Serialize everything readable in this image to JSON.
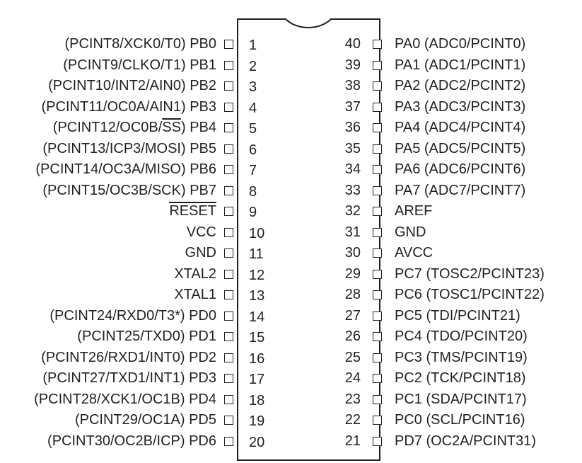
{
  "left_pins": [
    {
      "number": "1",
      "name": "PB0",
      "alt": "(PCINT8/XCK0/T0)"
    },
    {
      "number": "2",
      "name": "PB1",
      "alt": "(PCINT9/CLKO/T1)"
    },
    {
      "number": "3",
      "name": "PB2",
      "alt": "(PCINT10/INT2/AIN0)"
    },
    {
      "number": "4",
      "name": "PB3",
      "alt": "(PCINT11/OC0A/AIN1)"
    },
    {
      "number": "5",
      "name": "PB4",
      "alt_prefix": "(PCINT12/OC0B/",
      "alt_overline": "SS",
      "alt_suffix": ")"
    },
    {
      "number": "6",
      "name": "PB5",
      "alt": "(PCINT13/ICP3/MOSI)"
    },
    {
      "number": "7",
      "name": "PB6",
      "alt": "(PCINT14/OC3A/MISO)"
    },
    {
      "number": "8",
      "name": "PB7",
      "alt": "(PCINT15/OC3B/SCK)"
    },
    {
      "number": "9",
      "name_overline": "RESET",
      "alt": ""
    },
    {
      "number": "10",
      "name": "VCC",
      "alt": ""
    },
    {
      "number": "11",
      "name": "GND",
      "alt": ""
    },
    {
      "number": "12",
      "name": "XTAL2",
      "alt": ""
    },
    {
      "number": "13",
      "name": "XTAL1",
      "alt": ""
    },
    {
      "number": "14",
      "name": "PD0",
      "alt": "(PCINT24/RXD0/T3*)"
    },
    {
      "number": "15",
      "name": "PD1",
      "alt": "(PCINT25/TXD0)"
    },
    {
      "number": "16",
      "name": "PD2",
      "alt": "(PCINT26/RXD1/INT0)"
    },
    {
      "number": "17",
      "name": "PD3",
      "alt": "(PCINT27/TXD1/INT1)"
    },
    {
      "number": "18",
      "name": "PD4",
      "alt": "(PCINT28/XCK1/OC1B)"
    },
    {
      "number": "19",
      "name": "PD5",
      "alt": "(PCINT29/OC1A)"
    },
    {
      "number": "20",
      "name": "PD6",
      "alt": "(PCINT30/OC2B/ICP)"
    }
  ],
  "right_pins": [
    {
      "number": "40",
      "name": "PA0",
      "alt": "(ADC0/PCINT0)"
    },
    {
      "number": "39",
      "name": "PA1",
      "alt": "(ADC1/PCINT1)"
    },
    {
      "number": "38",
      "name": "PA2",
      "alt": "(ADC2/PCINT2)"
    },
    {
      "number": "37",
      "name": "PA3",
      "alt": "(ADC3/PCINT3)"
    },
    {
      "number": "36",
      "name": "PA4",
      "alt": "(ADC4/PCINT4)"
    },
    {
      "number": "35",
      "name": "PA5",
      "alt": "(ADC5/PCINT5)"
    },
    {
      "number": "34",
      "name": "PA6",
      "alt": "(ADC6/PCINT6)"
    },
    {
      "number": "33",
      "name": "PA7",
      "alt": "(ADC7/PCINT7)"
    },
    {
      "number": "32",
      "name": "AREF",
      "alt": ""
    },
    {
      "number": "31",
      "name": "GND",
      "alt": ""
    },
    {
      "number": "30",
      "name": "AVCC",
      "alt": ""
    },
    {
      "number": "29",
      "name": "PC7",
      "alt": "(TOSC2/PCINT23)"
    },
    {
      "number": "28",
      "name": "PC6",
      "alt": "(TOSC1/PCINT22)"
    },
    {
      "number": "27",
      "name": "PC5",
      "alt": "(TDI/PCINT21)"
    },
    {
      "number": "26",
      "name": "PC4",
      "alt": "(TDO/PCINT20)"
    },
    {
      "number": "25",
      "name": "PC3",
      "alt": "(TMS/PCINT19)"
    },
    {
      "number": "24",
      "name": "PC2",
      "alt": "(TCK/PCINT18)"
    },
    {
      "number": "23",
      "name": "PC1",
      "alt": "(SDA/PCINT17)"
    },
    {
      "number": "22",
      "name": "PC0",
      "alt": "(SCL/PCINT16)"
    },
    {
      "number": "21",
      "name": "PD7",
      "alt": "(OC2A/PCINT31)"
    }
  ],
  "colors": {
    "ink": "#231f20",
    "background": "#ffffff"
  }
}
